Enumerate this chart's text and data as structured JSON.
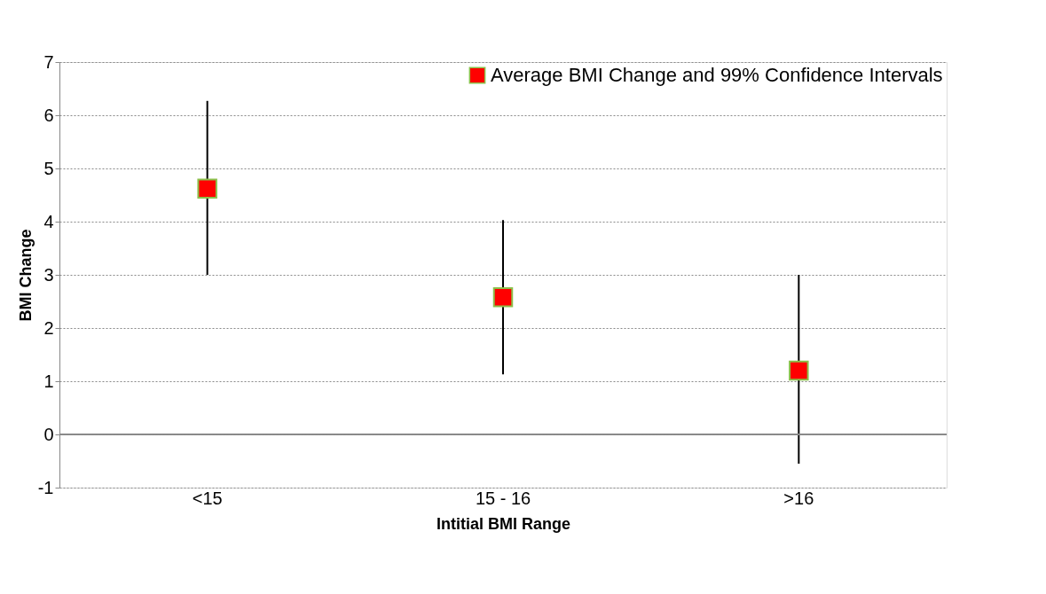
{
  "chart_data": {
    "type": "scatter",
    "xlabel": "Intitial BMI  Range",
    "ylabel": "BMI Change",
    "categories": [
      "<15",
      "15 - 16",
      ">16"
    ],
    "series": [
      {
        "name": "Average BMI Change and 99% Confidence Intervals",
        "color": "#ff0000",
        "values": [
          4.62,
          2.58,
          1.2
        ],
        "errors": [
          [
            3.0,
            6.27
          ],
          [
            1.13,
            4.03
          ],
          [
            -0.55,
            3.0
          ]
        ]
      }
    ],
    "ylim": [
      -1,
      7
    ],
    "yticks": [
      -1,
      0,
      1,
      2,
      3,
      4,
      5,
      6,
      7
    ],
    "grid": "y",
    "legend": "top right",
    "marker": "square"
  }
}
